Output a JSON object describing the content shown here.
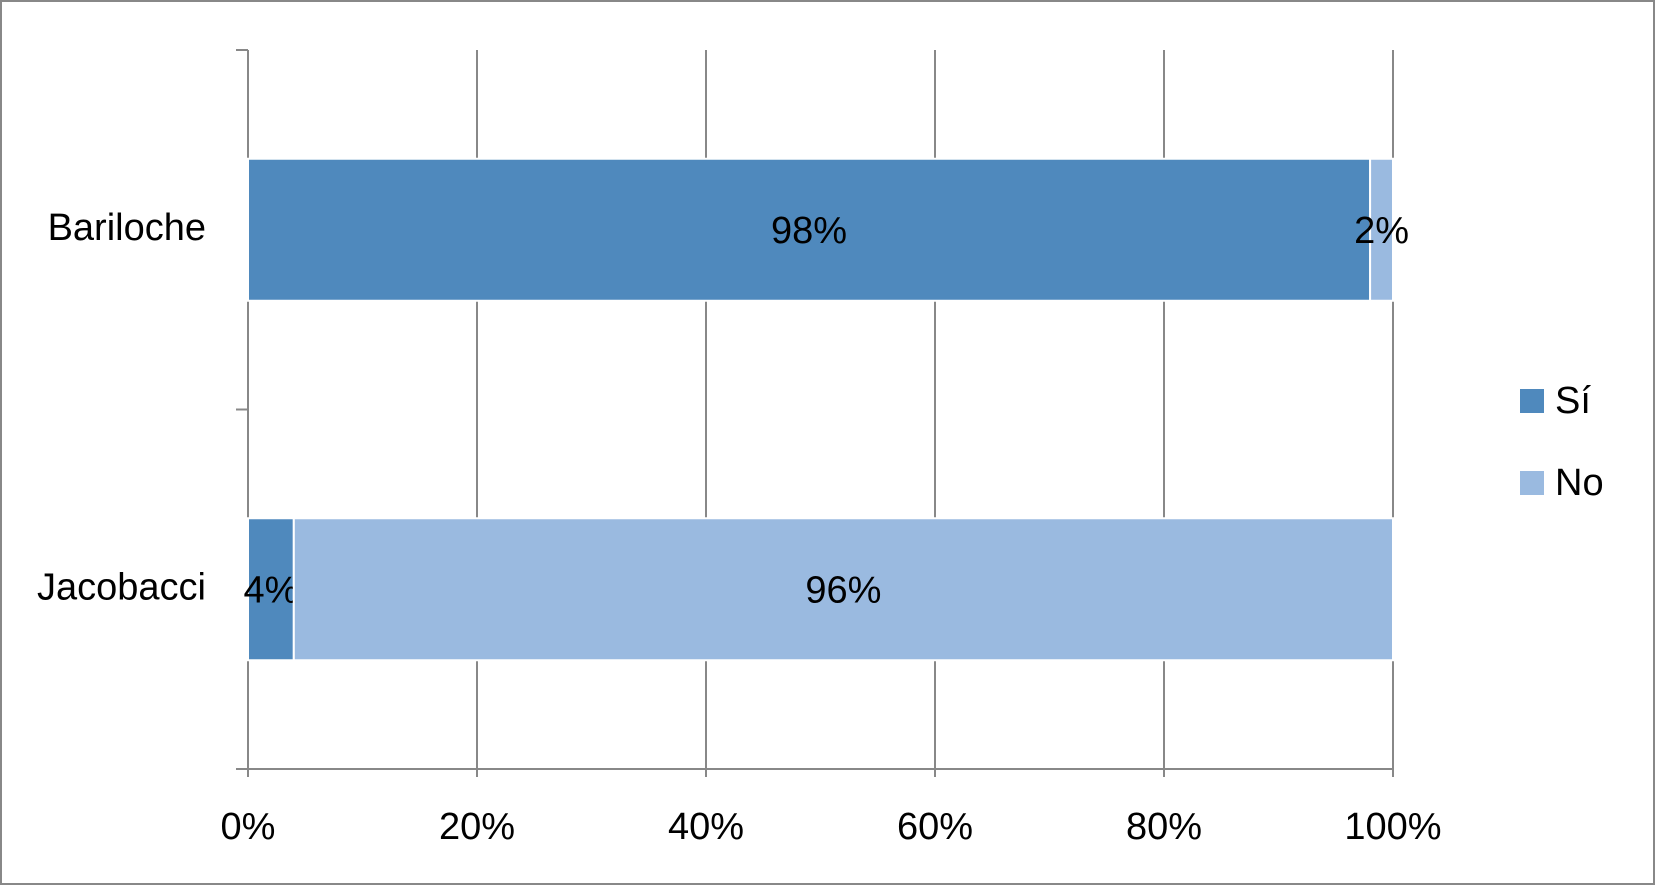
{
  "chart_data": {
    "type": "stacked-bar-horizontal",
    "categories": [
      "Bariloche",
      "Jacobacci"
    ],
    "series": [
      {
        "name": "Sí",
        "color": "#4f89bd",
        "values": [
          98,
          4
        ],
        "value_labels": [
          "98%",
          "4%"
        ]
      },
      {
        "name": "No",
        "color": "#9abae0",
        "values": [
          2,
          96
        ],
        "value_labels": [
          "2%",
          "96%"
        ]
      }
    ],
    "xlim": [
      0,
      100
    ],
    "xticks": [
      {
        "value": 0,
        "label": "0%"
      },
      {
        "value": 20,
        "label": "20%"
      },
      {
        "value": 40,
        "label": "40%"
      },
      {
        "value": 60,
        "label": "60%"
      },
      {
        "value": 80,
        "label": "80%"
      },
      {
        "value": 100,
        "label": "100%"
      }
    ],
    "grid": true,
    "legend": "right"
  }
}
